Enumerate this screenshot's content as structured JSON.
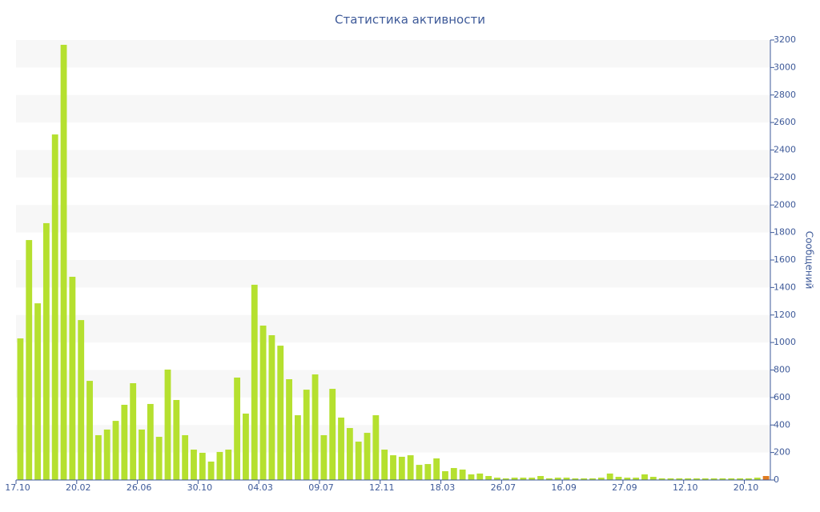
{
  "chart_data": {
    "type": "bar",
    "title": "Статистика активности",
    "y_label": "Сообщений",
    "categories": [
      "17.10",
      null,
      null,
      null,
      null,
      null,
      null,
      "20.02",
      null,
      null,
      null,
      null,
      null,
      null,
      "26.06",
      null,
      null,
      null,
      null,
      null,
      null,
      "30.10",
      null,
      null,
      null,
      null,
      null,
      null,
      "04.03",
      null,
      null,
      null,
      null,
      null,
      null,
      "09.07",
      null,
      null,
      null,
      null,
      null,
      null,
      "12.11",
      null,
      null,
      null,
      null,
      null,
      null,
      "18.03",
      null,
      null,
      null,
      null,
      null,
      null,
      "26.07",
      null,
      null,
      null,
      null,
      null,
      null,
      "16.09",
      null,
      null,
      null,
      null,
      null,
      null,
      "27.09",
      null,
      null,
      null,
      null,
      null,
      null,
      "12.10",
      null,
      null,
      null,
      null,
      null,
      null,
      "20.10",
      null,
      null
    ],
    "values": [
      1030,
      1745,
      1285,
      1868,
      2513,
      3165,
      1478,
      1163,
      721,
      326,
      367,
      430,
      547,
      704,
      367,
      553,
      314,
      803,
      582,
      326,
      221,
      198,
      134,
      204,
      221,
      745,
      483,
      1420,
      1123,
      1053,
      977,
      733,
      471,
      657,
      768,
      326,
      663,
      454,
      378,
      279,
      343,
      471,
      221,
      180,
      169,
      180,
      110,
      116,
      157,
      64,
      87,
      76,
      41,
      47,
      29,
      17,
      12,
      17,
      17,
      17,
      29,
      12,
      17,
      17,
      12,
      12,
      12,
      17,
      47,
      23,
      17,
      17,
      41,
      23,
      12,
      12,
      12,
      12,
      12,
      12,
      12,
      12,
      12,
      12,
      12,
      17,
      29
    ],
    "colors": [
      "#b5e02f",
      "#b5e02f",
      "#b5e02f",
      "#b5e02f",
      "#b5e02f",
      "#b5e02f",
      "#b5e02f",
      "#b5e02f",
      "#b5e02f",
      "#b5e02f",
      "#b5e02f",
      "#b5e02f",
      "#b5e02f",
      "#b5e02f",
      "#b5e02f",
      "#b5e02f",
      "#b5e02f",
      "#b5e02f",
      "#b5e02f",
      "#b5e02f",
      "#b5e02f",
      "#b5e02f",
      "#b5e02f",
      "#b5e02f",
      "#b5e02f",
      "#b5e02f",
      "#b5e02f",
      "#b5e02f",
      "#b5e02f",
      "#b5e02f",
      "#b5e02f",
      "#b5e02f",
      "#b5e02f",
      "#b5e02f",
      "#b5e02f",
      "#b5e02f",
      "#b5e02f",
      "#b5e02f",
      "#b5e02f",
      "#b5e02f",
      "#b5e02f",
      "#b5e02f",
      "#b5e02f",
      "#b5e02f",
      "#b5e02f",
      "#b5e02f",
      "#b5e02f",
      "#b5e02f",
      "#b5e02f",
      "#b5e02f",
      "#b5e02f",
      "#b5e02f",
      "#b5e02f",
      "#b5e02f",
      "#b5e02f",
      "#b5e02f",
      "#b5e02f",
      "#b5e02f",
      "#b5e02f",
      "#b5e02f",
      "#b5e02f",
      "#b5e02f",
      "#b5e02f",
      "#b5e02f",
      "#b5e02f",
      "#b5e02f",
      "#b5e02f",
      "#b5e02f",
      "#b5e02f",
      "#b5e02f",
      "#b5e02f",
      "#b5e02f",
      "#b5e02f",
      "#b5e02f",
      "#b5e02f",
      "#b5e02f",
      "#b5e02f",
      "#b5e02f",
      "#b5e02f",
      "#b5e02f",
      "#b5e02f",
      "#b5e02f",
      "#b5e02f",
      "#b5e02f",
      "#b5e02f",
      "#b5e02f",
      "#e07b20"
    ],
    "ylim": [
      0,
      3200
    ],
    "yticks": [
      0,
      200,
      400,
      600,
      800,
      1000,
      1200,
      1400,
      1600,
      1800,
      2000,
      2200,
      2400,
      2600,
      2800,
      3000,
      3200
    ],
    "grid": true
  }
}
